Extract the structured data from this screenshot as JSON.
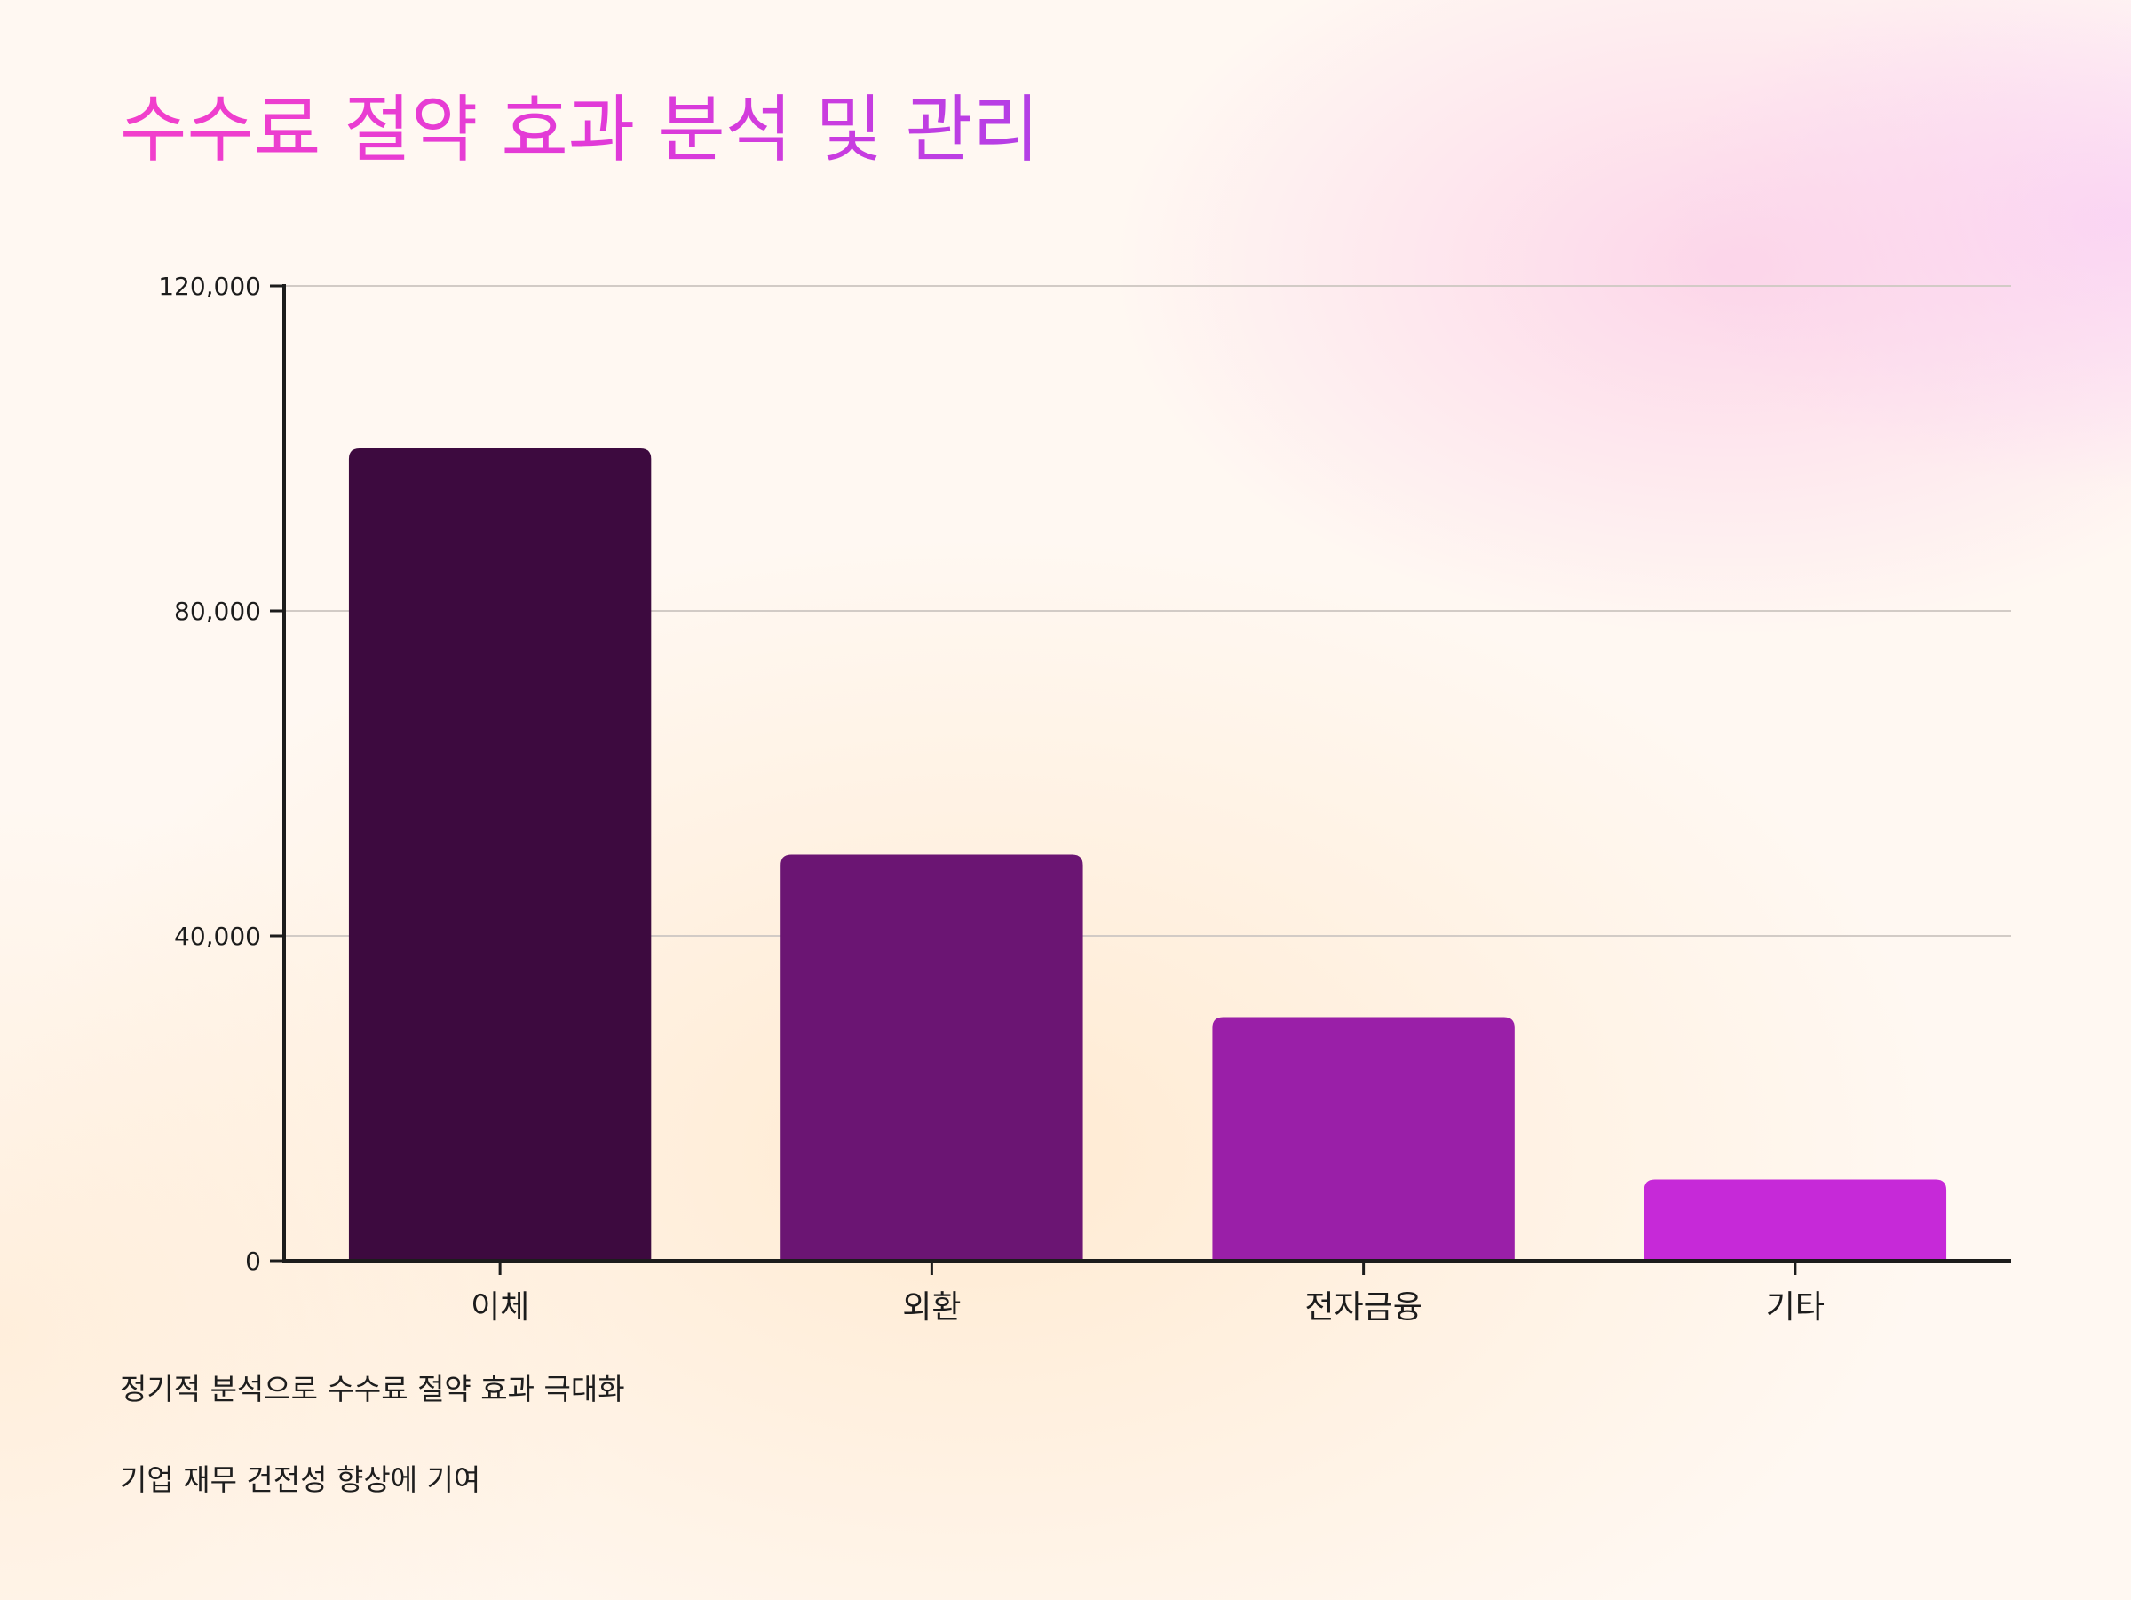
{
  "title": "수수료 절약 효과 분석 및 관리",
  "chart_data": {
    "type": "bar",
    "title": "",
    "xlabel": "",
    "ylabel": "",
    "categories": [
      "이체",
      "외환",
      "전자금융",
      "기타"
    ],
    "values": [
      100000,
      50000,
      30000,
      10000
    ],
    "ylim": [
      0,
      120000
    ],
    "yticks": [
      0,
      40000,
      80000,
      120000
    ],
    "ytick_labels": [
      "0",
      "40,000",
      "80,000",
      "120,000"
    ],
    "grid": true,
    "legend": "none",
    "colors": [
      "#3d0a3f",
      "#6b1573",
      "#9a1fa8",
      "#c629d8"
    ]
  },
  "notes": [
    "정기적 분석으로 수수료 절약 효과 극대화",
    "기업 재무 건전성 향상에 기여"
  ]
}
